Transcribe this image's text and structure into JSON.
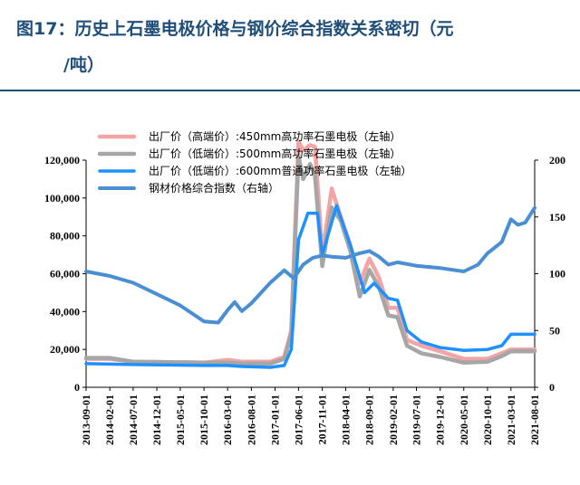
{
  "title": "图17：历史上石墨电极价格与钢价综合指数关系密切（元/吨）",
  "title_line1": "图17：历史上石墨电极价格与钢价综合指数关系密切（元",
  "title_line2": "/吨）",
  "colors": {
    "title": "#1f4e79",
    "high_end_450": "#f4a4a4",
    "low_end_500": "#a6a6a6",
    "low_end_600": "#1e90ff",
    "steel_index": "#4a8fd4"
  },
  "chart_data": {
    "type": "line",
    "x_ticks": [
      "2013-09-01",
      "2014-02-01",
      "2014-07-01",
      "2014-12-01",
      "2015-05-01",
      "2015-10-01",
      "2016-03-01",
      "2016-08-01",
      "2017-01-01",
      "2017-06-01",
      "2017-11-01",
      "2018-04-01",
      "2018-09-01",
      "2019-02-01",
      "2019-07-01",
      "2019-12-01",
      "2020-05-01",
      "2020-10-01",
      "2021-03-01",
      "2021-08-01"
    ],
    "y_left": {
      "range": [
        0,
        120000
      ],
      "ticks": [
        "0",
        "20,000",
        "40,000",
        "60,000",
        "80,000",
        "100,000",
        "120,000"
      ]
    },
    "y_right": {
      "range": [
        0,
        200
      ],
      "ticks": [
        "0",
        "50",
        "100",
        "150",
        "200"
      ]
    },
    "legend_position": "top",
    "series": [
      {
        "name": "出厂价（高端价）:450mm高功率石墨电极（左轴）",
        "axis": "left",
        "points": [
          [
            "2013-09-01",
            15000
          ],
          [
            "2014-02-01",
            15000
          ],
          [
            "2014-07-01",
            13500
          ],
          [
            "2015-10-01",
            13000
          ],
          [
            "2016-03-01",
            14500
          ],
          [
            "2016-06-01",
            13500
          ],
          [
            "2016-12-01",
            13500
          ],
          [
            "2017-03-01",
            16000
          ],
          [
            "2017-04-15",
            30000
          ],
          [
            "2017-06-01",
            130000
          ],
          [
            "2017-07-01",
            125000
          ],
          [
            "2017-08-15",
            128000
          ],
          [
            "2017-09-15",
            127000
          ],
          [
            "2017-11-01",
            70000
          ],
          [
            "2018-01-01",
            105000
          ],
          [
            "2018-03-01",
            90000
          ],
          [
            "2018-05-01",
            75000
          ],
          [
            "2018-07-01",
            55000
          ],
          [
            "2018-09-01",
            68000
          ],
          [
            "2018-11-01",
            58000
          ],
          [
            "2019-01-01",
            42000
          ],
          [
            "2019-03-01",
            42000
          ],
          [
            "2019-05-01",
            25000
          ],
          [
            "2019-08-01",
            22000
          ],
          [
            "2019-12-01",
            19000
          ],
          [
            "2020-05-01",
            15000
          ],
          [
            "2020-10-01",
            15000
          ],
          [
            "2021-01-01",
            18000
          ],
          [
            "2021-03-01",
            20000
          ],
          [
            "2021-08-01",
            20000
          ]
        ]
      },
      {
        "name": "出厂价（低端价）:500mm高功率石墨电极（左轴）",
        "axis": "left",
        "points": [
          [
            "2013-09-01",
            15500
          ],
          [
            "2014-02-01",
            15500
          ],
          [
            "2014-07-01",
            13500
          ],
          [
            "2015-10-01",
            13000
          ],
          [
            "2016-03-01",
            13000
          ],
          [
            "2016-06-01",
            12500
          ],
          [
            "2016-12-01",
            12500
          ],
          [
            "2017-03-01",
            15000
          ],
          [
            "2017-04-15",
            28000
          ],
          [
            "2017-06-01",
            122000
          ],
          [
            "2017-07-01",
            110000
          ],
          [
            "2017-08-15",
            118000
          ],
          [
            "2017-09-15",
            112000
          ],
          [
            "2017-11-01",
            64000
          ],
          [
            "2018-01-01",
            95000
          ],
          [
            "2018-03-01",
            88000
          ],
          [
            "2018-05-01",
            72000
          ],
          [
            "2018-07-01",
            48000
          ],
          [
            "2018-09-01",
            62000
          ],
          [
            "2018-11-01",
            53000
          ],
          [
            "2019-01-01",
            38000
          ],
          [
            "2019-03-01",
            37000
          ],
          [
            "2019-05-01",
            22000
          ],
          [
            "2019-08-01",
            18000
          ],
          [
            "2019-12-01",
            16000
          ],
          [
            "2020-05-01",
            13000
          ],
          [
            "2020-10-01",
            13500
          ],
          [
            "2021-01-01",
            16500
          ],
          [
            "2021-03-01",
            19000
          ],
          [
            "2021-08-01",
            19000
          ]
        ]
      },
      {
        "name": "出厂价（低端价）:600mm普通功率石墨电极（左轴）",
        "axis": "left",
        "points": [
          [
            "2013-09-01",
            12500
          ],
          [
            "2014-07-01",
            12000
          ],
          [
            "2015-10-01",
            11500
          ],
          [
            "2016-03-01",
            11500
          ],
          [
            "2016-06-01",
            11000
          ],
          [
            "2016-12-01",
            10500
          ],
          [
            "2017-03-01",
            11500
          ],
          [
            "2017-04-15",
            20000
          ],
          [
            "2017-06-01",
            78000
          ],
          [
            "2017-08-01",
            92000
          ],
          [
            "2017-10-01",
            92000
          ],
          [
            "2017-11-01",
            70000
          ],
          [
            "2018-02-01",
            96000
          ],
          [
            "2018-05-01",
            75000
          ],
          [
            "2018-08-01",
            50000
          ],
          [
            "2018-10-01",
            55000
          ],
          [
            "2019-01-01",
            47000
          ],
          [
            "2019-03-01",
            46000
          ],
          [
            "2019-05-01",
            30000
          ],
          [
            "2019-08-01",
            24000
          ],
          [
            "2019-12-01",
            21000
          ],
          [
            "2020-05-01",
            19500
          ],
          [
            "2020-10-01",
            20000
          ],
          [
            "2021-01-01",
            22000
          ],
          [
            "2021-03-01",
            28000
          ],
          [
            "2021-08-01",
            28000
          ]
        ]
      },
      {
        "name": "钢材价格综合指数（右轴）",
        "axis": "right",
        "points": [
          [
            "2013-09-01",
            102
          ],
          [
            "2014-02-01",
            98
          ],
          [
            "2014-07-01",
            92
          ],
          [
            "2014-12-01",
            82
          ],
          [
            "2015-05-01",
            72
          ],
          [
            "2015-10-01",
            58
          ],
          [
            "2016-01-01",
            57
          ],
          [
            "2016-03-01",
            68
          ],
          [
            "2016-04-15",
            75
          ],
          [
            "2016-06-01",
            67
          ],
          [
            "2016-08-01",
            74
          ],
          [
            "2016-12-01",
            92
          ],
          [
            "2017-03-01",
            103
          ],
          [
            "2017-05-01",
            96
          ],
          [
            "2017-07-01",
            108
          ],
          [
            "2017-09-01",
            114
          ],
          [
            "2017-11-01",
            116
          ],
          [
            "2018-01-01",
            115
          ],
          [
            "2018-04-01",
            114
          ],
          [
            "2018-07-01",
            118
          ],
          [
            "2018-09-01",
            120
          ],
          [
            "2018-11-01",
            115
          ],
          [
            "2019-01-01",
            108
          ],
          [
            "2019-03-01",
            110
          ],
          [
            "2019-07-01",
            107
          ],
          [
            "2019-12-01",
            105
          ],
          [
            "2020-05-01",
            102
          ],
          [
            "2020-08-01",
            108
          ],
          [
            "2020-10-01",
            118
          ],
          [
            "2021-01-01",
            128
          ],
          [
            "2021-03-01",
            148
          ],
          [
            "2021-04-15",
            143
          ],
          [
            "2021-06-01",
            145
          ],
          [
            "2021-08-01",
            158
          ]
        ]
      }
    ]
  }
}
